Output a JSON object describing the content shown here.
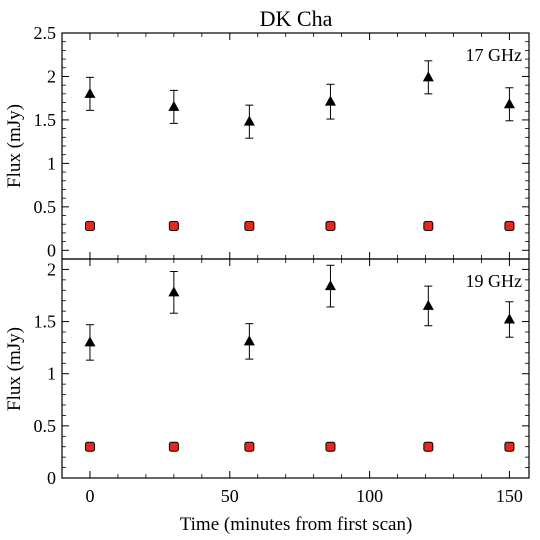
{
  "chart_data": {
    "type": "scatter",
    "title": "DK Cha",
    "xlabel": "Time (minutes from first scan)",
    "xlim": [
      -10,
      157
    ],
    "xticks": [
      0,
      50,
      100,
      150
    ],
    "panels": [
      {
        "label": "17 GHz",
        "ylabel": "Flux (mJy)",
        "ylim": [
          -0.1,
          2.5
        ],
        "yticks": [
          0,
          0.5,
          1,
          1.5,
          2,
          2.5
        ],
        "ytick_labels": [
          "0",
          "0.5",
          "1",
          "1.5",
          "2",
          "2.5"
        ],
        "series": [
          {
            "marker": "triangle",
            "color": "#000000",
            "x": [
              0,
              30,
              57,
              86,
              121,
              150
            ],
            "y": [
              1.8,
              1.65,
              1.48,
              1.71,
              1.99,
              1.68
            ],
            "err": [
              0.19,
              0.19,
              0.19,
              0.2,
              0.19,
              0.19
            ]
          },
          {
            "marker": "square",
            "color": "#e8261c",
            "x": [
              0,
              30,
              57,
              86,
              121,
              150
            ],
            "y": [
              0.28,
              0.28,
              0.28,
              0.28,
              0.28,
              0.28
            ]
          }
        ]
      },
      {
        "label": "19 GHz",
        "ylabel": "Flux (mJy)",
        "ylim": [
          0,
          2.1
        ],
        "yticks": [
          0,
          0.5,
          1,
          1.5,
          2
        ],
        "ytick_labels": [
          "0",
          "0.5",
          "1",
          "1.5",
          "2"
        ],
        "series": [
          {
            "marker": "triangle",
            "color": "#000000",
            "x": [
              0,
              30,
              57,
              86,
              121,
              150
            ],
            "y": [
              1.3,
              1.78,
              1.31,
              1.84,
              1.65,
              1.52
            ],
            "err": [
              0.17,
              0.2,
              0.17,
              0.2,
              0.19,
              0.17
            ]
          },
          {
            "marker": "square",
            "color": "#e8261c",
            "x": [
              0,
              30,
              57,
              86,
              121,
              150
            ],
            "y": [
              0.3,
              0.3,
              0.3,
              0.3,
              0.3,
              0.3
            ]
          }
        ]
      }
    ]
  }
}
